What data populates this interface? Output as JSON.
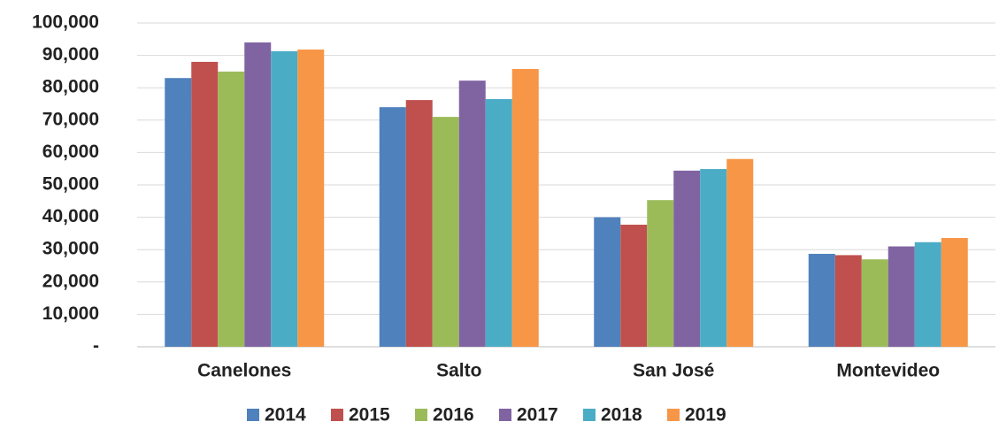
{
  "chart_data": {
    "type": "bar",
    "categories": [
      "Canelones",
      "Salto",
      "San José",
      "Montevideo"
    ],
    "series": [
      {
        "name": "2014",
        "color": "#4f81bd",
        "values": [
          83000,
          74000,
          40000,
          28700
        ]
      },
      {
        "name": "2015",
        "color": "#c0504d",
        "values": [
          88000,
          76200,
          37700,
          28300
        ]
      },
      {
        "name": "2016",
        "color": "#9bbb59",
        "values": [
          85000,
          71000,
          45300,
          27000
        ]
      },
      {
        "name": "2017",
        "color": "#8064a2",
        "values": [
          94000,
          82200,
          54400,
          31000
        ]
      },
      {
        "name": "2018",
        "color": "#4bacc6",
        "values": [
          91300,
          76500,
          54900,
          32300
        ]
      },
      {
        "name": "2019",
        "color": "#f79646",
        "values": [
          91800,
          85800,
          58000,
          33600
        ]
      }
    ],
    "ylim": [
      0,
      100000
    ],
    "yticks": [
      {
        "value": 0,
        "label": "-"
      },
      {
        "value": 10000,
        "label": "10,000"
      },
      {
        "value": 20000,
        "label": "20,000"
      },
      {
        "value": 30000,
        "label": "30,000"
      },
      {
        "value": 40000,
        "label": "40,000"
      },
      {
        "value": 50000,
        "label": "50,000"
      },
      {
        "value": 60000,
        "label": "60,000"
      },
      {
        "value": 70000,
        "label": "70,000"
      },
      {
        "value": 80000,
        "label": "80,000"
      },
      {
        "value": 90000,
        "label": "90,000"
      },
      {
        "value": 100000,
        "label": "100,000"
      }
    ],
    "grid": true,
    "legend": "bottom"
  }
}
